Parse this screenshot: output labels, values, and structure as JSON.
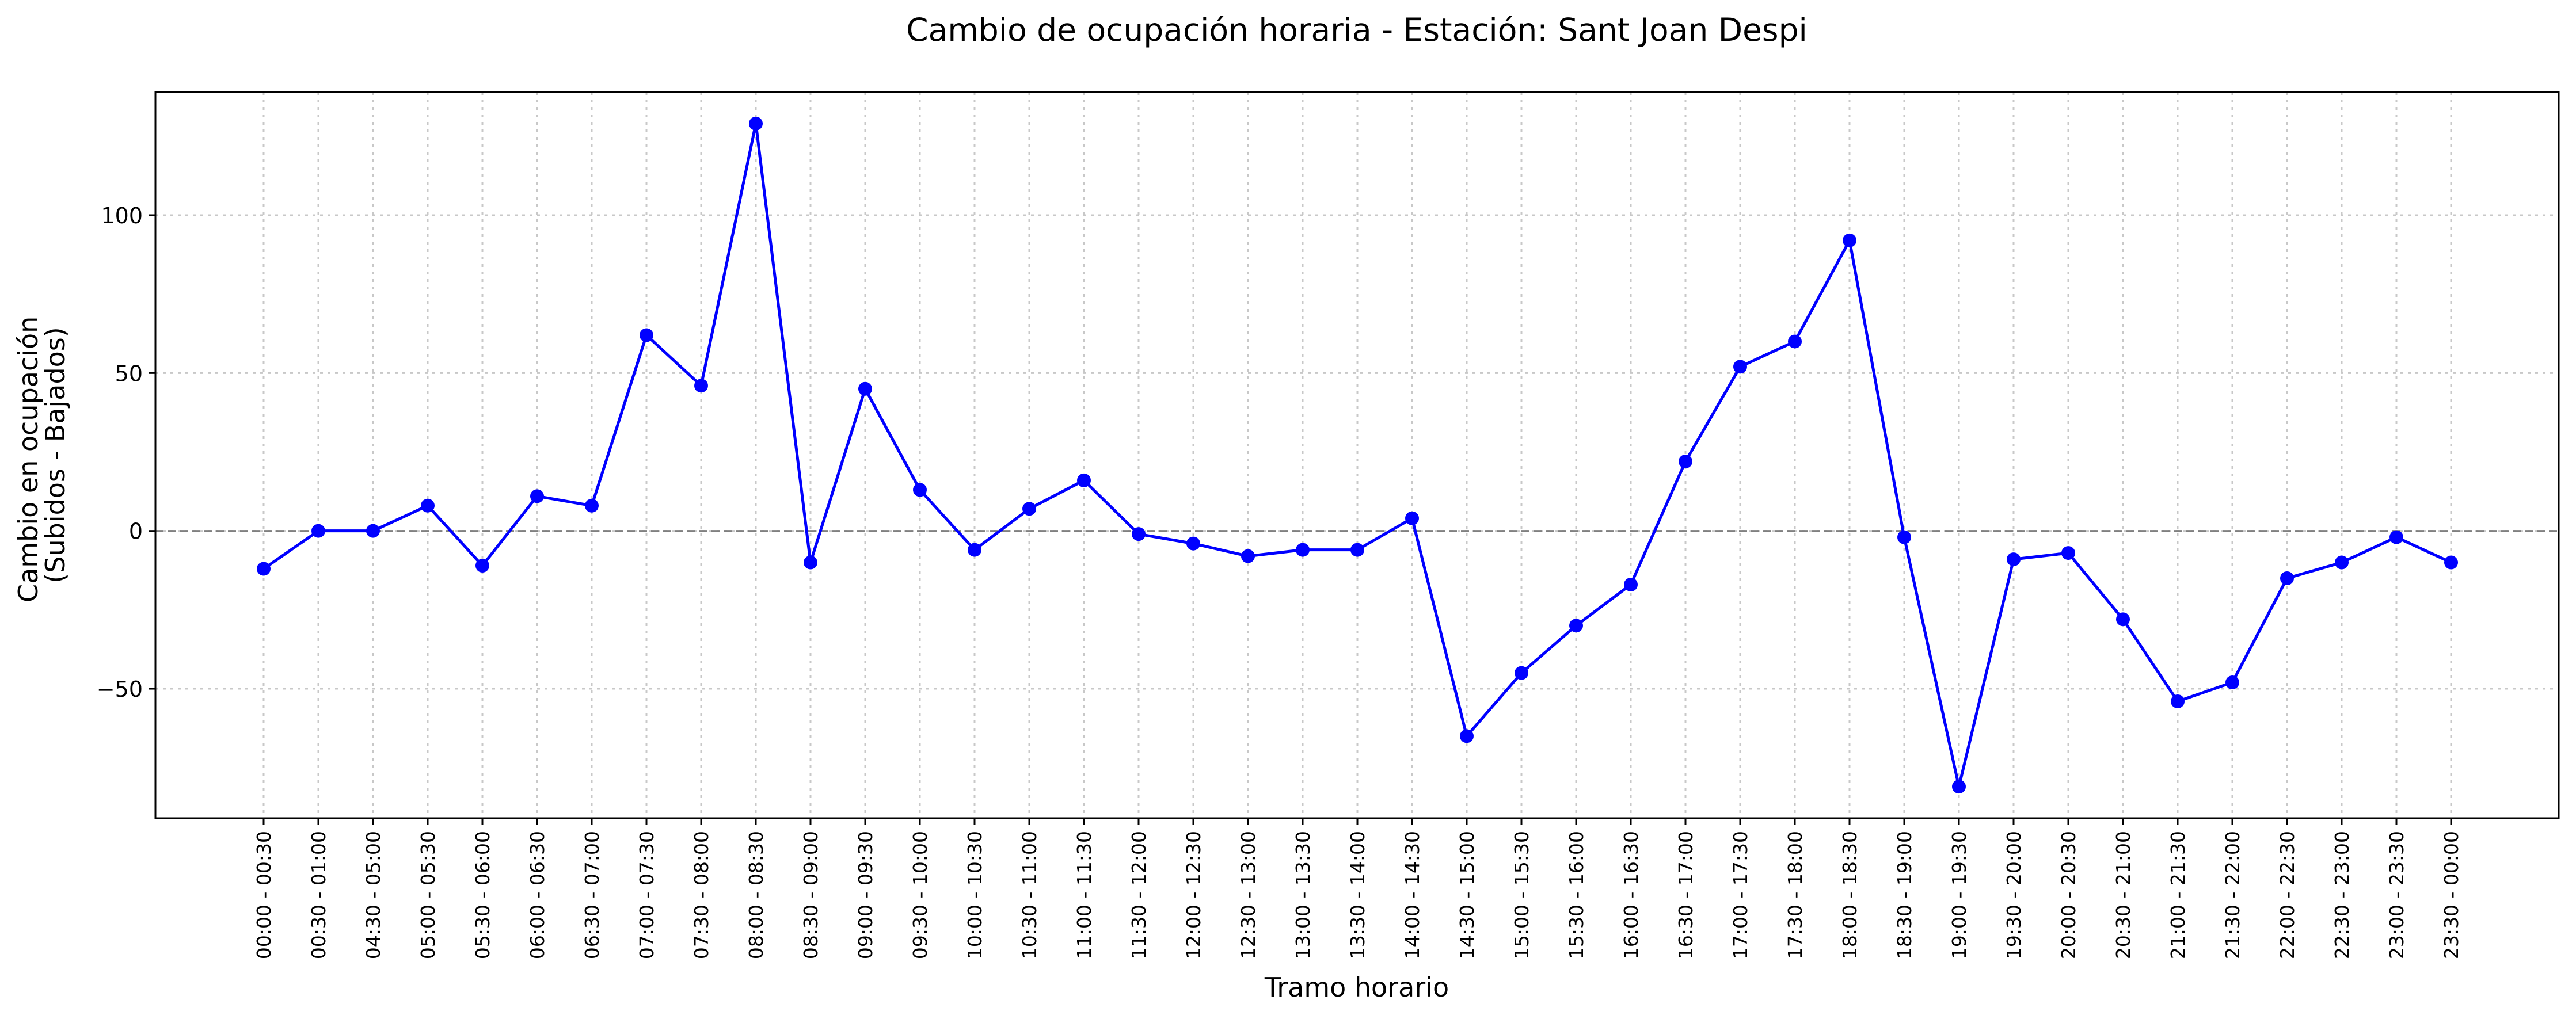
{
  "chart_data": {
    "type": "line",
    "title": "Cambio de ocupación horaria - Estación: Sant Joan Despi",
    "xlabel": "Tramo horario",
    "ylabel": [
      "Cambio en ocupación",
      "(Subidos - Bajados)"
    ],
    "categories": [
      "00:00 - 00:30",
      "00:30 - 01:00",
      "04:30 - 05:00",
      "05:00 - 05:30",
      "05:30 - 06:00",
      "06:00 - 06:30",
      "06:30 - 07:00",
      "07:00 - 07:30",
      "07:30 - 08:00",
      "08:00 - 08:30",
      "08:30 - 09:00",
      "09:00 - 09:30",
      "09:30 - 10:00",
      "10:00 - 10:30",
      "10:30 - 11:00",
      "11:00 - 11:30",
      "11:30 - 12:00",
      "12:00 - 12:30",
      "12:30 - 13:00",
      "13:00 - 13:30",
      "13:30 - 14:00",
      "14:00 - 14:30",
      "14:30 - 15:00",
      "15:00 - 15:30",
      "15:30 - 16:00",
      "16:00 - 16:30",
      "16:30 - 17:00",
      "17:00 - 17:30",
      "17:30 - 18:00",
      "18:00 - 18:30",
      "18:30 - 19:00",
      "19:00 - 19:30",
      "19:30 - 20:00",
      "20:00 - 20:30",
      "20:30 - 21:00",
      "21:00 - 21:30",
      "21:30 - 22:00",
      "22:00 - 22:30",
      "22:30 - 23:00",
      "23:00 - 23:30",
      "23:30 - 00:00"
    ],
    "series": [
      {
        "values": [
          -12,
          0,
          0,
          8,
          -11,
          11,
          8,
          62,
          46,
          129,
          -10,
          45,
          13,
          -6,
          7,
          16,
          -1,
          -4,
          -8,
          -6,
          -6,
          4,
          -65,
          -45,
          -30,
          -17,
          22,
          52,
          60,
          92,
          -2,
          -81,
          -9,
          -7,
          -28,
          -54,
          -48,
          -15,
          -10,
          -2,
          -10
        ]
      }
    ],
    "ylim": [
      -91,
      139
    ],
    "yticks": [
      -50,
      0,
      50,
      100
    ],
    "ytick_labels": [
      "−50",
      "0",
      "50",
      "100"
    ],
    "grid": true,
    "reference_line": 0,
    "colors": {
      "line": "#0000ff",
      "marker": "#0000ff",
      "reference": "#808080",
      "grid": "#c8c8c8"
    }
  }
}
